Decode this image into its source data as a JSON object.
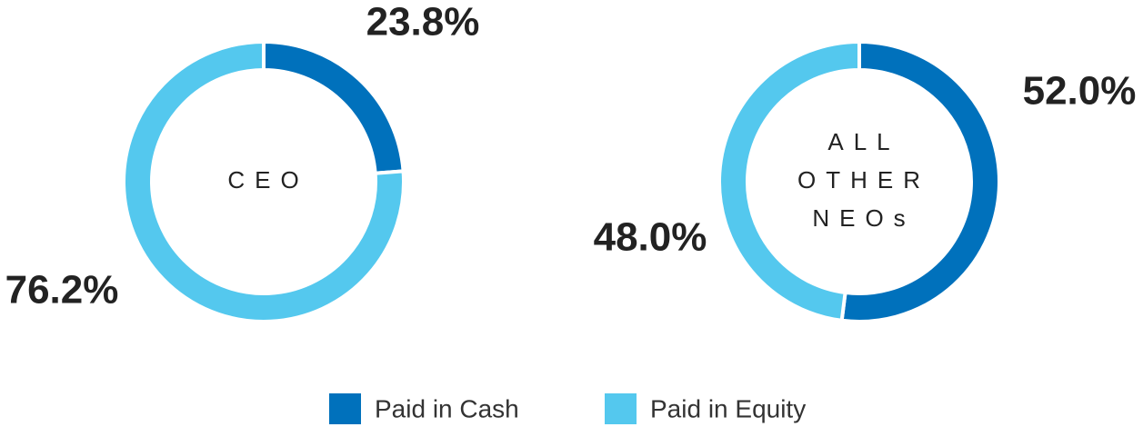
{
  "chart_data": [
    {
      "type": "donut",
      "center_label": "CEO",
      "categories": [
        "Paid in Cash",
        "Paid in Equity"
      ],
      "values": [
        23.8,
        76.2
      ],
      "value_labels": [
        "23.8%",
        "76.2%"
      ],
      "colors": [
        "#0071bc",
        "#54c8ee"
      ]
    },
    {
      "type": "donut",
      "center_label": "ALL OTHER NEOs",
      "categories": [
        "Paid in Cash",
        "Paid in Equity"
      ],
      "values": [
        52.0,
        48.0
      ],
      "value_labels": [
        "52.0%",
        "48.0%"
      ],
      "colors": [
        "#0071bc",
        "#54c8ee"
      ]
    }
  ]
}
